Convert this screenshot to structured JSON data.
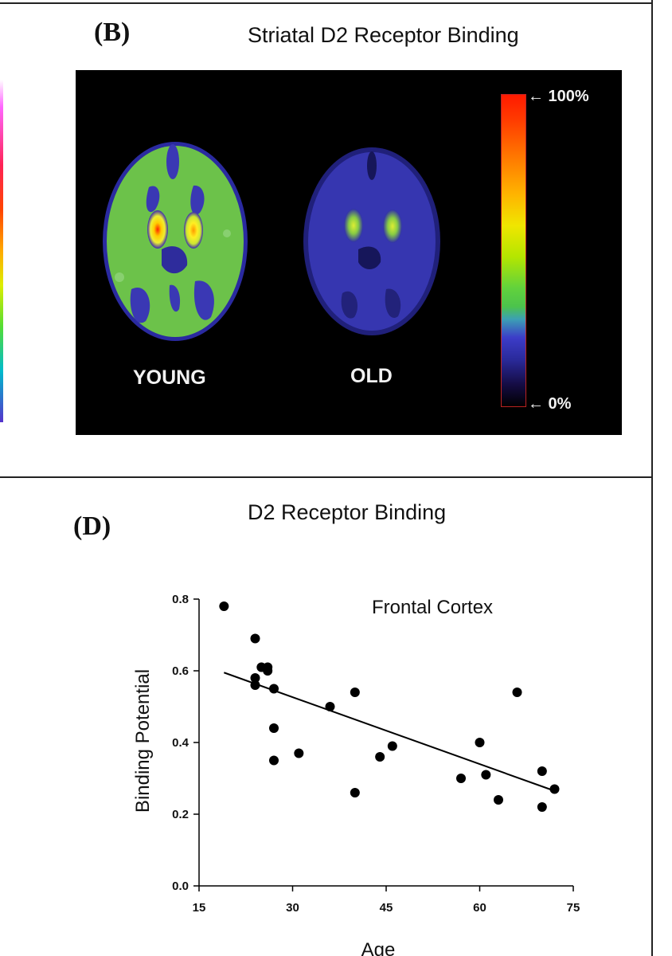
{
  "panel_b": {
    "letter": "(B)",
    "title": "Striatal D2 Receptor Binding",
    "labels": {
      "young": "YOUNG",
      "old": "OLD"
    },
    "color_scale": {
      "max_label": "← 100%",
      "min_label": "← 0%"
    }
  },
  "panel_d": {
    "letter": "(D)",
    "title": "D2 Receptor Binding"
  },
  "chart_data": {
    "type": "scatter",
    "title": "D2 Receptor Binding",
    "annotation": "Frontal Cortex",
    "xlabel": "Age",
    "ylabel": "Binding Potential",
    "xlim": [
      15,
      75
    ],
    "ylim": [
      0.0,
      0.8
    ],
    "xticks": [
      "15",
      "30",
      "45",
      "60",
      "75"
    ],
    "xtick_values": [
      15,
      30,
      45,
      60,
      75
    ],
    "yticks": [
      "0.0",
      "0.2",
      "0.4",
      "0.6",
      "0.8"
    ],
    "ytick_values": [
      0.0,
      0.2,
      0.4,
      0.6,
      0.8
    ],
    "grid": false,
    "points": [
      {
        "x": 19,
        "y": 0.78
      },
      {
        "x": 24,
        "y": 0.69
      },
      {
        "x": 25,
        "y": 0.61
      },
      {
        "x": 26,
        "y": 0.61
      },
      {
        "x": 26,
        "y": 0.6
      },
      {
        "x": 24,
        "y": 0.58
      },
      {
        "x": 24,
        "y": 0.56
      },
      {
        "x": 27,
        "y": 0.55
      },
      {
        "x": 27,
        "y": 0.44
      },
      {
        "x": 27,
        "y": 0.35
      },
      {
        "x": 31,
        "y": 0.37
      },
      {
        "x": 36,
        "y": 0.5
      },
      {
        "x": 40,
        "y": 0.54
      },
      {
        "x": 40,
        "y": 0.26
      },
      {
        "x": 44,
        "y": 0.36
      },
      {
        "x": 46,
        "y": 0.39
      },
      {
        "x": 57,
        "y": 0.3
      },
      {
        "x": 60,
        "y": 0.4
      },
      {
        "x": 61,
        "y": 0.31
      },
      {
        "x": 63,
        "y": 0.24
      },
      {
        "x": 66,
        "y": 0.54
      },
      {
        "x": 70,
        "y": 0.32
      },
      {
        "x": 70,
        "y": 0.22
      },
      {
        "x": 72,
        "y": 0.27
      }
    ],
    "trendline": {
      "x": [
        19,
        72
      ],
      "y": [
        0.595,
        0.265
      ]
    }
  }
}
